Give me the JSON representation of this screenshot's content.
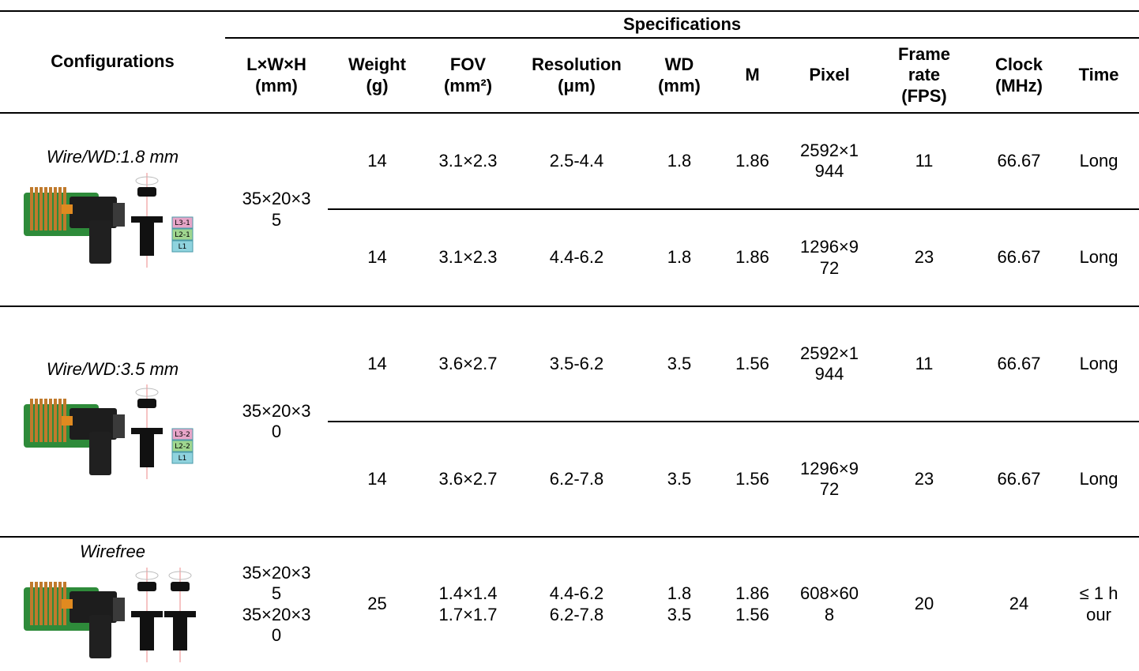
{
  "table": {
    "group_header": "Specifications",
    "header": [
      [
        "Configurations"
      ],
      [
        "L×W×H",
        "(mm)"
      ],
      [
        "Weight",
        "(g)"
      ],
      [
        "FOV",
        "(mm²)"
      ],
      [
        "Resolution",
        "(μm)"
      ],
      [
        "WD",
        "(mm)"
      ],
      [
        "M"
      ],
      [
        "Pixel"
      ],
      [
        "Frame",
        "rate",
        "(FPS)"
      ],
      [
        "Clock",
        "(MHz)"
      ],
      [
        "Time"
      ]
    ],
    "groups": [
      {
        "configuration": "Wire/WD:1.8 mm",
        "lens_labels": [
          "L3-1",
          "L2-1",
          "L1"
        ],
        "size": [
          "35×20×35"
        ],
        "rows": [
          [
            [
              "14"
            ],
            [
              "3.1×2.3"
            ],
            [
              "2.5-4.4"
            ],
            [
              "1.8"
            ],
            [
              "1.86"
            ],
            [
              "2592×1944"
            ],
            [
              "11"
            ],
            [
              "66.67"
            ],
            [
              "Long"
            ]
          ],
          [
            [
              "14"
            ],
            [
              "3.1×2.3"
            ],
            [
              "4.4-6.2"
            ],
            [
              "1.8"
            ],
            [
              "1.86"
            ],
            [
              "1296×972"
            ],
            [
              "23"
            ],
            [
              "66.67"
            ],
            [
              "Long"
            ]
          ]
        ]
      },
      {
        "configuration": "Wire/WD:3.5 mm",
        "lens_labels": [
          "L3-2",
          "L2-2",
          "L1"
        ],
        "size": [
          "35×20×30"
        ],
        "rows": [
          [
            [
              "14"
            ],
            [
              "3.6×2.7"
            ],
            [
              "3.5-6.2"
            ],
            [
              "3.5"
            ],
            [
              "1.56"
            ],
            [
              "2592×1944"
            ],
            [
              "11"
            ],
            [
              "66.67"
            ],
            [
              "Long"
            ]
          ],
          [
            [
              "14"
            ],
            [
              "3.6×2.7"
            ],
            [
              "6.2-7.8"
            ],
            [
              "3.5"
            ],
            [
              "1.56"
            ],
            [
              "1296×972"
            ],
            [
              "23"
            ],
            [
              "66.67"
            ],
            [
              "Long"
            ]
          ]
        ]
      },
      {
        "configuration": "Wirefree",
        "size": [
          "35×20×35",
          "35×20×30"
        ],
        "rows": [
          [
            [
              "25"
            ],
            [
              "1.4×1.4",
              "1.7×1.7"
            ],
            [
              "4.4-6.2",
              "6.2-7.8"
            ],
            [
              "1.8",
              "3.5"
            ],
            [
              "1.86",
              "1.56"
            ],
            [
              "608×608"
            ],
            [
              "20"
            ],
            [
              "24"
            ],
            [
              "≤ 1 hour"
            ]
          ]
        ]
      }
    ]
  }
}
